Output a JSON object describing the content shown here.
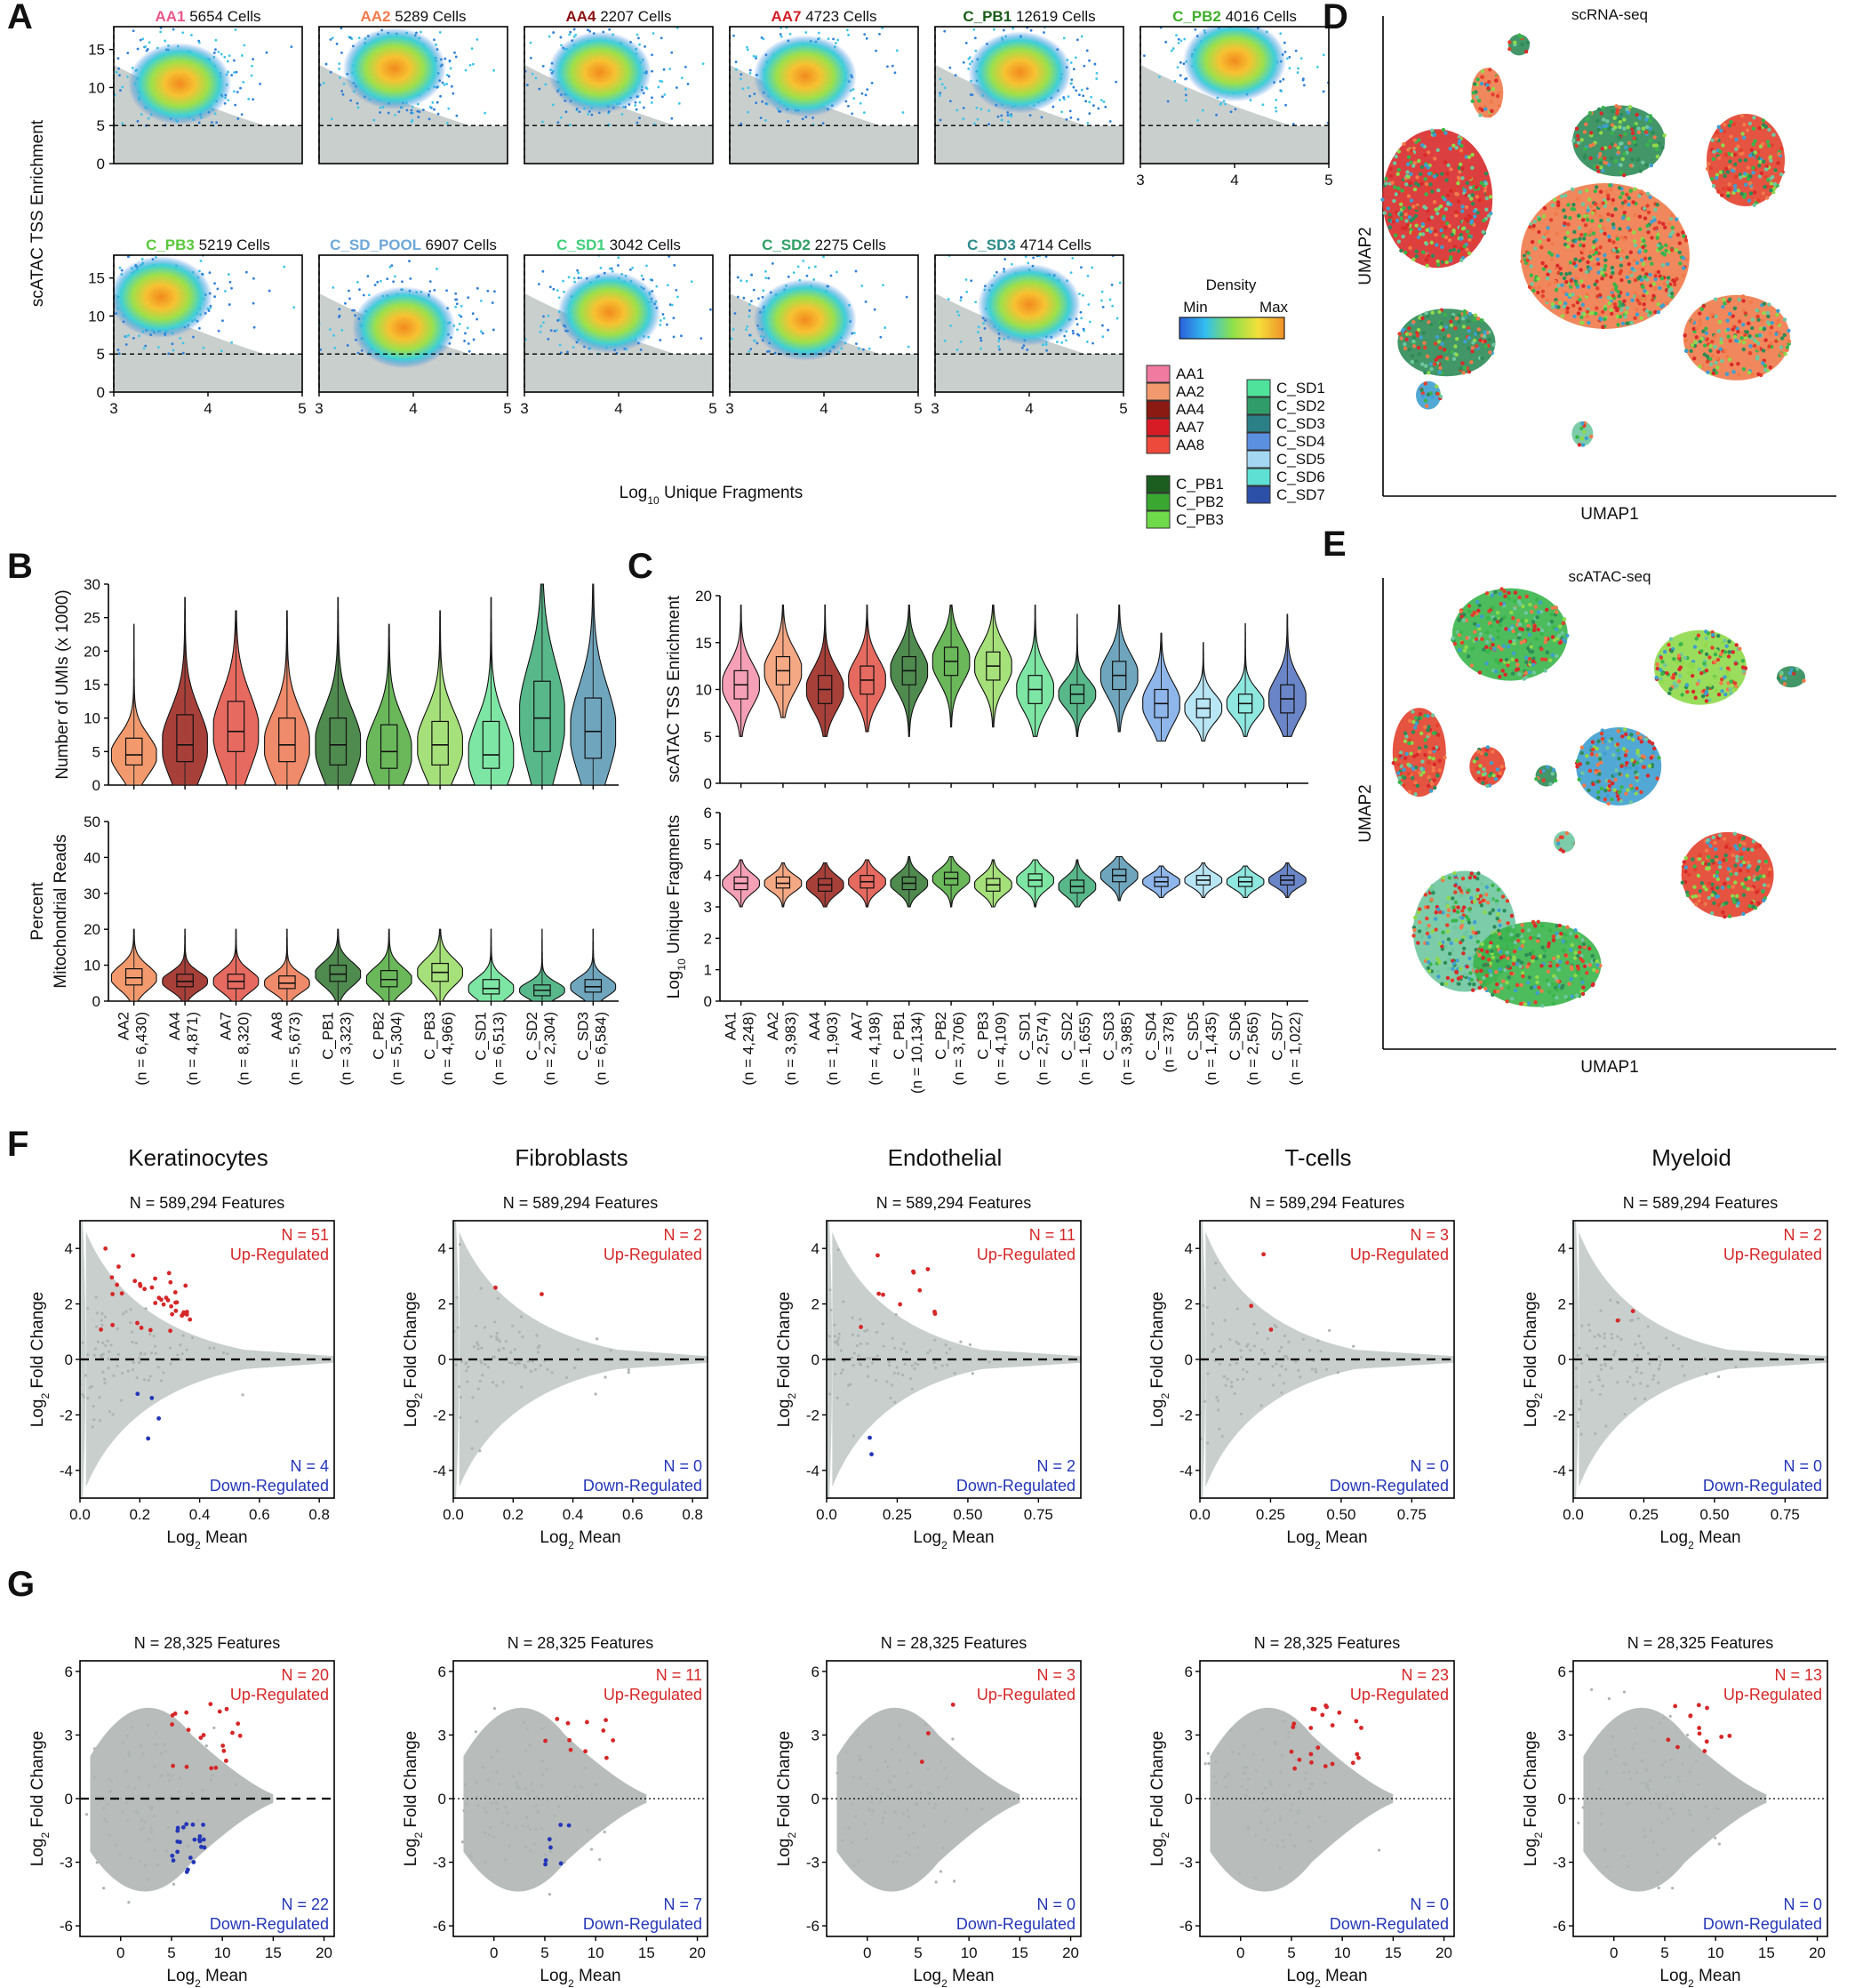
{
  "figure": {
    "panel_labels": [
      "A",
      "B",
      "C",
      "D",
      "E",
      "F",
      "G"
    ],
    "colors": {
      "grey_points": "#c9cfcd",
      "up": "#d62728",
      "down": "#2436b8",
      "text_red": "#d62728",
      "text_blue": "#2436b8"
    }
  },
  "chart_data": [
    {
      "id": "A",
      "type": "scatter",
      "subtype": "density",
      "xlabel": "Log10 Unique Fragments",
      "ylabel": "scATAC TSS Enrichment",
      "xlim": [
        3,
        5
      ],
      "ylim": [
        0,
        18
      ],
      "xticks": [
        "3",
        "4",
        "5"
      ],
      "yticks": [
        "0",
        "5",
        "10",
        "15"
      ],
      "cutoffs": {
        "x": 3,
        "y": 5
      },
      "legend": {
        "title": "Density",
        "min_label": "Min",
        "max_label": "Max"
      },
      "samples": [
        {
          "name": "AA1",
          "cells": "5654 Cells",
          "color": "#e9578a",
          "cx": 3.7,
          "cy": 10.5
        },
        {
          "name": "AA2",
          "cells": "5289 Cells",
          "color": "#f07a4a",
          "cx": 3.8,
          "cy": 12.5
        },
        {
          "name": "AA4",
          "cells": "2207 Cells",
          "color": "#8b0f12",
          "cx": 3.8,
          "cy": 12.0
        },
        {
          "name": "AA7",
          "cells": "4723 Cells",
          "color": "#d31f26",
          "cx": 3.8,
          "cy": 11.5
        },
        {
          "name": "C_PB1",
          "cells": "12619 Cells",
          "color": "#1a5c1a",
          "cx": 3.9,
          "cy": 12.0
        },
        {
          "name": "C_PB2",
          "cells": "4016 Cells",
          "color": "#3fae2a",
          "cx": 4.0,
          "cy": 13.5
        },
        {
          "name": "C_PB3",
          "cells": "5219 Cells",
          "color": "#58c83a",
          "cx": 3.5,
          "cy": 12.5
        },
        {
          "name": "C_SD_POOL",
          "cells": "6907 Cells",
          "color": "#6ea7d8",
          "cx": 3.9,
          "cy": 8.5
        },
        {
          "name": "C_SD1",
          "cells": "3042 Cells",
          "color": "#3fce7a",
          "cx": 3.9,
          "cy": 10.5
        },
        {
          "name": "C_SD2",
          "cells": "2275 Cells",
          "color": "#2f9e63",
          "cx": 3.8,
          "cy": 9.5
        },
        {
          "name": "C_SD3",
          "cells": "4714 Cells",
          "color": "#2c8a8a",
          "cx": 4.0,
          "cy": 11.5
        }
      ],
      "sample_legend": {
        "left": [
          {
            "name": "AA1",
            "color": "#f07aa0"
          },
          {
            "name": "AA2",
            "color": "#f29a6e"
          },
          {
            "name": "AA4",
            "color": "#8b1a12"
          },
          {
            "name": "AA7",
            "color": "#d81c26"
          },
          {
            "name": "AA8",
            "color": "#ee4a3c"
          },
          {
            "name": "C_PB1",
            "color": "#1b5e20"
          },
          {
            "name": "C_PB2",
            "color": "#3aa830"
          },
          {
            "name": "C_PB3",
            "color": "#6fdb4a"
          }
        ],
        "right": [
          {
            "name": "C_SD1",
            "color": "#4ee29a"
          },
          {
            "name": "C_SD2",
            "color": "#2f9c6a"
          },
          {
            "name": "C_SD3",
            "color": "#2b7f86"
          },
          {
            "name": "C_SD4",
            "color": "#5b8fe0"
          },
          {
            "name": "C_SD5",
            "color": "#a4d8f2"
          },
          {
            "name": "C_SD6",
            "color": "#5ee0d4"
          },
          {
            "name": "C_SD7",
            "color": "#2c4fa8"
          }
        ]
      }
    },
    {
      "id": "B-top",
      "type": "violin",
      "ylabel": "Number of UMIs (x 1000)",
      "ylim": [
        0,
        30
      ],
      "yticks": [
        "0",
        "5",
        "10",
        "15",
        "20",
        "25",
        "30"
      ],
      "categories": [
        "AA2",
        "AA4",
        "AA7",
        "AA8",
        "C_PB1",
        "C_PB2",
        "C_PB3",
        "C_SD1",
        "C_SD2",
        "C_SD3"
      ],
      "counts": [
        "(n = 6,430)",
        "(n = 4,871)",
        "(n = 8,320)",
        "(n = 5,673)",
        "(n = 3,323)",
        "(n = 5,304)",
        "(n = 4,966)",
        "(n = 6,513)",
        "(n = 2,304)",
        "(n = 6,584)"
      ],
      "colors": [
        "#f29a6e",
        "#a8403a",
        "#e66a60",
        "#ef8a6a",
        "#4f8a4f",
        "#6ab85a",
        "#a6e07a",
        "#7ee6a4",
        "#58b88a",
        "#6fa6be"
      ],
      "medians": [
        4.5,
        6,
        8,
        6,
        6,
        5,
        6,
        4.5,
        10,
        8
      ],
      "q1": [
        3,
        3.5,
        5,
        3.5,
        3,
        2.5,
        3,
        2.5,
        5,
        4
      ],
      "q3": [
        7,
        10.5,
        12.5,
        10,
        10,
        9,
        9.5,
        9.5,
        15.5,
        13
      ],
      "max": [
        24,
        28,
        26,
        26,
        28,
        24,
        26,
        28,
        30,
        30
      ]
    },
    {
      "id": "B-bottom",
      "type": "violin",
      "ylabel": "Percent Mitochondrial Reads",
      "ylim": [
        0,
        50
      ],
      "yticks": [
        "0",
        "10",
        "20",
        "30",
        "40",
        "50"
      ],
      "categories": [
        "AA2",
        "AA4",
        "AA7",
        "AA8",
        "C_PB1",
        "C_PB2",
        "C_PB3",
        "C_SD1",
        "C_SD2",
        "C_SD3"
      ],
      "medians": [
        6.5,
        5.5,
        5.5,
        5,
        7.5,
        6,
        8,
        3.5,
        3,
        4
      ],
      "q1": [
        4.5,
        4,
        3.5,
        3.5,
        5.5,
        4,
        5.5,
        2,
        1.5,
        2.5
      ],
      "q3": [
        9,
        7.5,
        7.5,
        7,
        10,
        8.5,
        10.5,
        6,
        4.5,
        6
      ],
      "max": [
        20,
        20,
        20,
        20,
        20,
        20,
        20,
        20,
        20,
        20
      ]
    },
    {
      "id": "C-top",
      "type": "violin",
      "ylabel": "scATAC TSS Enrichment",
      "ylim": [
        0,
        20
      ],
      "yticks": [
        "0",
        "5",
        "10",
        "15",
        "20"
      ],
      "categories": [
        "AA1",
        "AA2",
        "AA4",
        "AA7",
        "C_PB1",
        "C_PB2",
        "C_PB3",
        "C_SD1",
        "C_SD2",
        "C_SD3",
        "C_SD4",
        "C_SD5",
        "C_SD6",
        "C_SD7"
      ],
      "counts": [
        "(n = 4,248)",
        "(n = 3,983)",
        "(n = 1,903)",
        "(n = 4,198)",
        "(n = 10,134)",
        "(n = 3,706)",
        "(n = 4,109)",
        "(n = 2,574)",
        "(n = 1,655)",
        "(n = 3,985)",
        "(n = 378)",
        "(n = 1,435)",
        "(n = 2,565)",
        "(n = 1,022)"
      ],
      "colors": [
        "#f5a0b6",
        "#f5a884",
        "#a8403a",
        "#e66a60",
        "#4f8a4f",
        "#6ab85a",
        "#a6e07a",
        "#7ee6a4",
        "#58b88a",
        "#6fa6be",
        "#8fb6ea",
        "#b9e6f5",
        "#8fe8e0",
        "#6a86c8"
      ],
      "medians": [
        10.5,
        12,
        10,
        11,
        12,
        13,
        12.5,
        10,
        9.5,
        11.5,
        8.5,
        8,
        8.5,
        9
      ],
      "q1": [
        9,
        10.5,
        8.5,
        9.5,
        10.5,
        11.5,
        11,
        8.5,
        8.5,
        10,
        7,
        7,
        7.5,
        7.5
      ],
      "q3": [
        12,
        13.5,
        11.5,
        12.5,
        13.5,
        14.5,
        14,
        11.5,
        10.5,
        13,
        10,
        9,
        9.5,
        10.5
      ],
      "min": [
        5,
        7,
        5,
        5.5,
        5,
        6,
        6,
        5,
        5,
        5.5,
        4.5,
        4.5,
        5,
        5
      ],
      "max": [
        19,
        19,
        19,
        19,
        19,
        19,
        19,
        19,
        18,
        19,
        16,
        15,
        17,
        18
      ]
    },
    {
      "id": "C-bottom",
      "type": "violin",
      "ylabel": "Log10 Unique Fragments",
      "ylim": [
        0,
        6
      ],
      "yticks": [
        "0",
        "1",
        "2",
        "3",
        "4",
        "5",
        "6"
      ],
      "categories": [
        "AA1",
        "AA2",
        "AA4",
        "AA7",
        "C_PB1",
        "C_PB2",
        "C_PB3",
        "C_SD1",
        "C_SD2",
        "C_SD3",
        "C_SD4",
        "C_SD5",
        "C_SD6",
        "C_SD7"
      ],
      "medians": [
        3.75,
        3.75,
        3.7,
        3.8,
        3.75,
        3.9,
        3.7,
        3.85,
        3.65,
        4.0,
        3.8,
        3.85,
        3.8,
        3.85
      ],
      "q1": [
        3.55,
        3.6,
        3.5,
        3.6,
        3.55,
        3.7,
        3.5,
        3.65,
        3.45,
        3.8,
        3.65,
        3.7,
        3.65,
        3.7
      ],
      "q3": [
        3.95,
        3.95,
        3.9,
        4.0,
        3.95,
        4.1,
        3.9,
        4.05,
        3.85,
        4.2,
        3.95,
        4.0,
        3.95,
        4.0
      ],
      "min": [
        3.0,
        3.0,
        3.0,
        3.0,
        3.0,
        3.0,
        3.0,
        3.0,
        3.0,
        3.2,
        3.3,
        3.3,
        3.3,
        3.3
      ],
      "max": [
        4.5,
        4.4,
        4.4,
        4.5,
        4.6,
        4.6,
        4.5,
        4.5,
        4.5,
        4.6,
        4.3,
        4.4,
        4.3,
        4.4
      ]
    },
    {
      "id": "D",
      "type": "scatter",
      "subtype": "umap",
      "title": "scRNA-seq",
      "xlabel": "UMAP1",
      "ylabel": "UMAP2"
    },
    {
      "id": "E",
      "type": "scatter",
      "subtype": "umap",
      "title": "scATAC-seq",
      "xlabel": "UMAP1",
      "ylabel": "UMAP2"
    },
    {
      "id": "F",
      "type": "scatter",
      "subtype": "MA",
      "xlabel": "Log2 Mean",
      "ylabel": "Log2 Fold Change",
      "ylim": [
        -5,
        5
      ],
      "yticks": [
        "-4",
        "-2",
        "0",
        "2",
        "4"
      ],
      "panels": [
        {
          "title": "Keratinocytes",
          "features": "N = 589,294 Features",
          "up": "N = 51",
          "down": "N = 4",
          "xticks": [
            "0.0",
            "0.2",
            "0.4",
            "0.6",
            "0.8"
          ],
          "xmax": 0.85,
          "n_up": 51,
          "n_down": 4
        },
        {
          "title": "Fibroblasts",
          "features": "N = 589,294 Features",
          "up": "N = 2",
          "down": "N = 0",
          "xticks": [
            "0.0",
            "0.2",
            "0.4",
            "0.6",
            "0.8"
          ],
          "xmax": 0.85,
          "n_up": 2,
          "n_down": 0
        },
        {
          "title": "Endothelial",
          "features": "N = 589,294 Features",
          "up": "N = 11",
          "down": "N = 2",
          "xticks": [
            "0.0",
            "0.25",
            "0.50",
            "0.75"
          ],
          "xmax": 0.9,
          "n_up": 11,
          "n_down": 2
        },
        {
          "title": "T-cells",
          "features": "N = 589,294 Features",
          "up": "N = 3",
          "down": "N = 0",
          "xticks": [
            "0.0",
            "0.25",
            "0.50",
            "0.75"
          ],
          "xmax": 0.9,
          "n_up": 3,
          "n_down": 0
        },
        {
          "title": "Myeloid",
          "features": "N = 589,294 Features",
          "up": "N = 2",
          "down": "N = 0",
          "xticks": [
            "0.0",
            "0.25",
            "0.50",
            "0.75"
          ],
          "xmax": 0.9,
          "n_up": 2,
          "n_down": 0
        }
      ],
      "up_label": "Up-Regulated",
      "down_label": "Down-Regulated"
    },
    {
      "id": "G",
      "type": "scatter",
      "subtype": "MA",
      "xlabel": "Log2 Mean",
      "ylabel": "Log2 Fold Change",
      "xlim": [
        -4,
        21
      ],
      "ylim": [
        -6.5,
        6.5
      ],
      "xticks": [
        "0",
        "5",
        "10",
        "15",
        "20"
      ],
      "yticks": [
        "-6",
        "-3",
        "0",
        "3",
        "6"
      ],
      "panels": [
        {
          "features": "N = 28,325 Features",
          "up": "N = 20",
          "down": "N = 22",
          "n_up": 20,
          "n_down": 22
        },
        {
          "features": "N = 28,325 Features",
          "up": "N = 11",
          "down": "N = 7",
          "n_up": 11,
          "n_down": 7
        },
        {
          "features": "N = 28,325 Features",
          "up": "N = 3",
          "down": "N = 0",
          "n_up": 3,
          "n_down": 0
        },
        {
          "features": "N = 28,325 Features",
          "up": "N = 23",
          "down": "N = 0",
          "n_up": 23,
          "n_down": 0
        },
        {
          "features": "N = 28,325 Features",
          "up": "N = 13",
          "down": "N = 0",
          "n_up": 13,
          "n_down": 0
        }
      ],
      "up_label": "Up-Regulated",
      "down_label": "Down-Regulated"
    }
  ]
}
